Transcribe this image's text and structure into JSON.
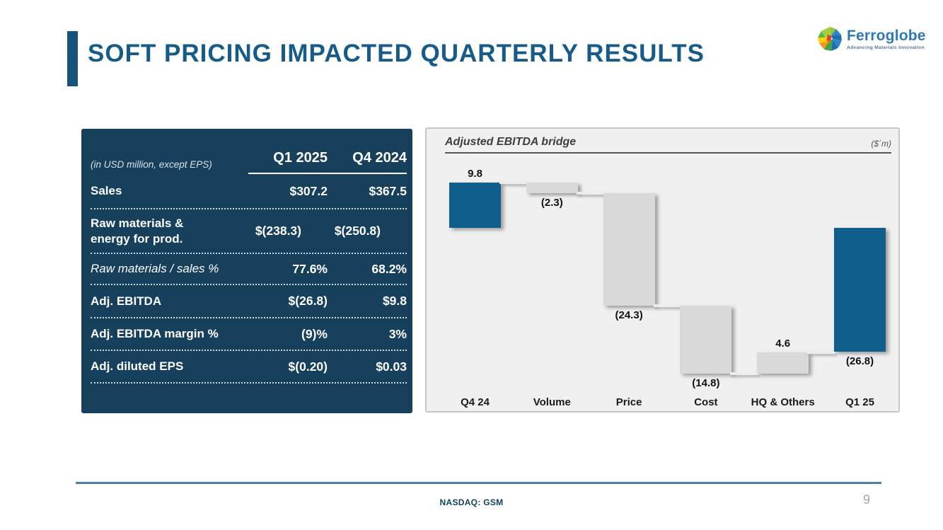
{
  "title": "SOFT PRICING IMPACTED QUARTERLY RESULTS",
  "logo": {
    "name": "Ferroglobe",
    "tagline": "Advancing Materials Innovation"
  },
  "table": {
    "note": "(in USD million, except EPS)",
    "col1": "Q1 2025",
    "col2": "Q4 2024",
    "rows": [
      {
        "label": "Sales",
        "v1": "$307.2",
        "v2": "$367.5"
      },
      {
        "label": "Raw materials & energy for prod.",
        "v1": "$(238.3)",
        "v2": "$(250.8)"
      },
      {
        "label": "Raw materials / sales %",
        "v1": "77.6%",
        "v2": "68.2%"
      },
      {
        "label": "Adj. EBITDA",
        "v1": "$(26.8)",
        "v2": "$9.8"
      },
      {
        "label": "Adj. EBITDA margin %",
        "v1": "(9)%",
        "v2": "3%"
      },
      {
        "label": "Adj. diluted EPS",
        "v1": "$(0.20)",
        "v2": "$0.03"
      }
    ]
  },
  "chart_data": {
    "type": "bar",
    "subtype": "waterfall",
    "title": "Adjusted EBITDA bridge",
    "unit_label": "($´m)",
    "categories": [
      "Q4 24",
      "Volume",
      "Price",
      "Cost",
      "HQ & Others",
      "Q1 25"
    ],
    "values": [
      9.8,
      -2.3,
      -24.3,
      -14.8,
      4.6,
      -26.8
    ],
    "labels": [
      "9.8",
      "(2.3)",
      "(24.3)",
      "(14.8)",
      "4.6",
      "(26.8)"
    ],
    "bar_roles": [
      "total",
      "delta",
      "delta",
      "delta",
      "delta",
      "total"
    ],
    "colors": {
      "total_bar": "#0F5E8C",
      "delta_bar": "#D9D9D9",
      "connector": "#EDEDED"
    },
    "ylim": [
      -33,
      12
    ],
    "grid": false,
    "legend": "none"
  },
  "footer": {
    "ticker": "NASDAQ: GSM",
    "page_number": "9"
  },
  "colors": {
    "title_blue": "#175B89",
    "table_bg": "#16405C",
    "footer_line": "#4E81A8"
  }
}
